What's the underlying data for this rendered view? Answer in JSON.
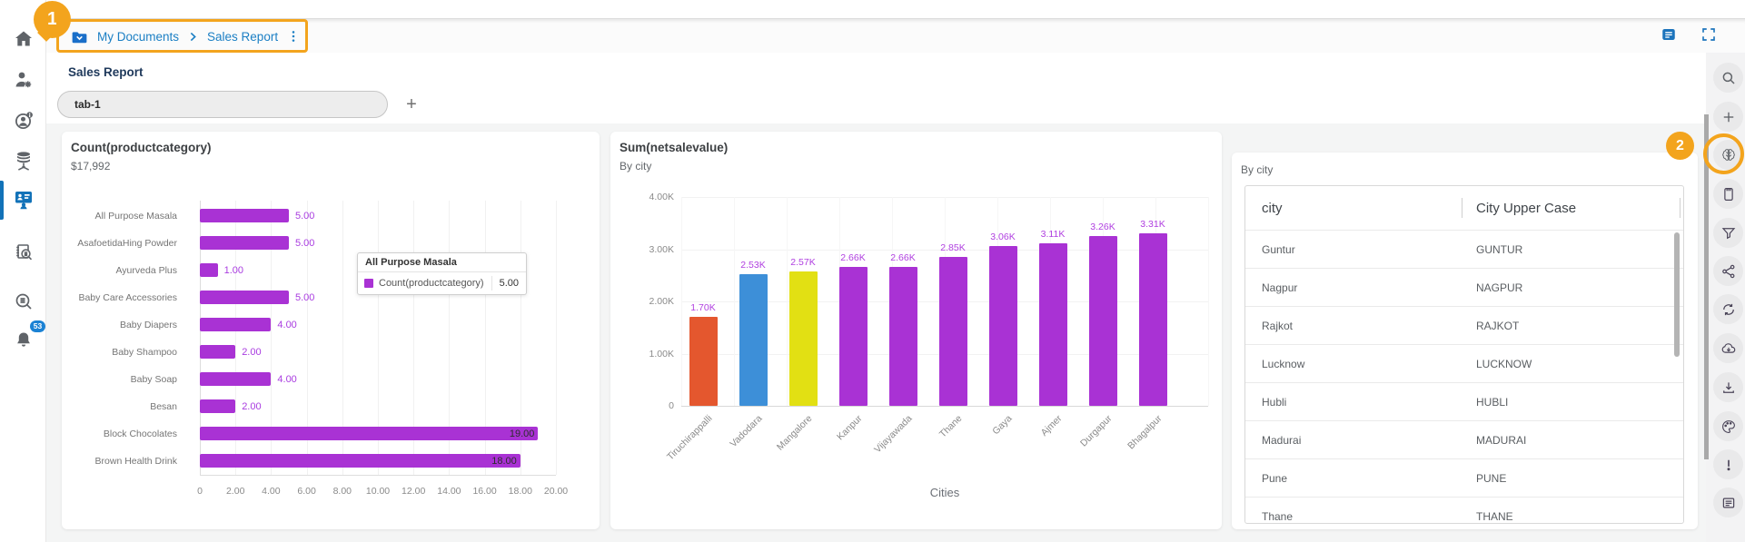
{
  "page_title": "Sales Report",
  "header": {
    "breadcrumb": {
      "icon": "folder-icon",
      "items": [
        "My Documents",
        "Sales Report"
      ],
      "menu_icon": "kebab-menu-icon"
    },
    "actions": [
      {
        "icon": "comments-icon"
      },
      {
        "icon": "fullscreen-icon"
      }
    ]
  },
  "tab_bar": {
    "active_tab": "tab-1",
    "add_button": "+"
  },
  "left_sidebar": {
    "items": [
      {
        "icon": "home-icon",
        "active": false
      },
      {
        "icon": "user-settings-icon",
        "active": false
      },
      {
        "icon": "account-info-icon",
        "active": false
      },
      {
        "icon": "data-sources-icon",
        "active": false
      },
      {
        "icon": "dashboards-icon",
        "active": true
      },
      {
        "icon": "report-search-icon",
        "active": false
      },
      {
        "icon": "search-data-icon",
        "active": false
      },
      {
        "icon": "notifications-bell-icon",
        "active": false,
        "badge": "53"
      }
    ]
  },
  "right_sidebar": {
    "items": [
      {
        "icon": "search-icon",
        "gray": true
      },
      {
        "icon": "add-widget-icon",
        "gray": true
      },
      {
        "icon": "ai-brain-icon",
        "gray": true
      },
      {
        "icon": "clipboard-icon"
      },
      {
        "icon": "filter-icon"
      },
      {
        "icon": "share-icon"
      },
      {
        "icon": "refresh-icon"
      },
      {
        "icon": "cloud-download-icon"
      },
      {
        "icon": "download-icon"
      },
      {
        "icon": "palette-icon"
      },
      {
        "icon": "alert-icon"
      },
      {
        "icon": "report-list-icon"
      }
    ]
  },
  "annotations": {
    "step1": "1",
    "step2": "2",
    "accent_color": "#f3a41d"
  },
  "chart_data": [
    {
      "type": "bar",
      "orientation": "horizontal",
      "title": "Count(productcategory)",
      "subtitle": "$17,992",
      "categories": [
        "All Purpose Masala",
        "AsafoetidaHing Powder",
        "Ayurveda Plus",
        "Baby Care Accessories",
        "Baby Diapers",
        "Baby Shampoo",
        "Baby Soap",
        "Besan",
        "Block Chocolates",
        "Brown Health Drink"
      ],
      "values": [
        5,
        5,
        1,
        5,
        4,
        2,
        4,
        2,
        19,
        18
      ],
      "value_labels": [
        "5.00",
        "5.00",
        "1.00",
        "5.00",
        "4.00",
        "2.00",
        "4.00",
        "2.00",
        "19.00",
        "18.00"
      ],
      "xlim": [
        0,
        20
      ],
      "x_ticks": [
        "0",
        "2.00",
        "4.00",
        "6.00",
        "8.00",
        "10.00",
        "12.00",
        "14.00",
        "16.00",
        "18.00",
        "20.00"
      ],
      "bar_color": "#a932d4",
      "grid": true,
      "tooltip": {
        "header": "All Purpose Masala",
        "series": "Count(productcategory)",
        "value": "5.00",
        "swatch_color": "#a932d4"
      }
    },
    {
      "type": "bar",
      "orientation": "vertical",
      "title": "Sum(netsalevalue)",
      "subtitle": "By city",
      "xlabel": "Cities",
      "categories": [
        "Tiruchirappalli",
        "Vadodara",
        "Mangalore",
        "Kanpur",
        "Vijayawada",
        "Thane",
        "Gaya",
        "Ajmer",
        "Durgapur",
        "Bhagalpur"
      ],
      "values": [
        1700,
        2530,
        2570,
        2660,
        2660,
        2850,
        3060,
        3110,
        3260,
        3310
      ],
      "value_labels": [
        "1.70K",
        "2.53K",
        "2.57K",
        "2.66K",
        "2.66K",
        "2.85K",
        "3.06K",
        "3.11K",
        "3.26K",
        "3.31K"
      ],
      "bar_colors": [
        "#e4572e",
        "#3d8fd8",
        "#e2e013",
        "#a932d4",
        "#a932d4",
        "#a932d4",
        "#a932d4",
        "#a932d4",
        "#a932d4",
        "#a932d4"
      ],
      "ylim": [
        0,
        4000
      ],
      "y_ticks": [
        "4.00K",
        "3.00K",
        "2.00K",
        "1.00K",
        "0"
      ],
      "grid": true,
      "legend": "none"
    },
    {
      "type": "table",
      "title": "By city",
      "columns": [
        "city",
        "City Upper Case"
      ],
      "rows": [
        [
          "Guntur",
          "GUNTUR"
        ],
        [
          "Nagpur",
          "NAGPUR"
        ],
        [
          "Rajkot",
          "RAJKOT"
        ],
        [
          "Lucknow",
          "LUCKNOW"
        ],
        [
          "Hubli",
          "HUBLI"
        ],
        [
          "Madurai",
          "MADURAI"
        ],
        [
          "Pune",
          "PUNE"
        ],
        [
          "Thane",
          "THANE"
        ]
      ]
    }
  ]
}
